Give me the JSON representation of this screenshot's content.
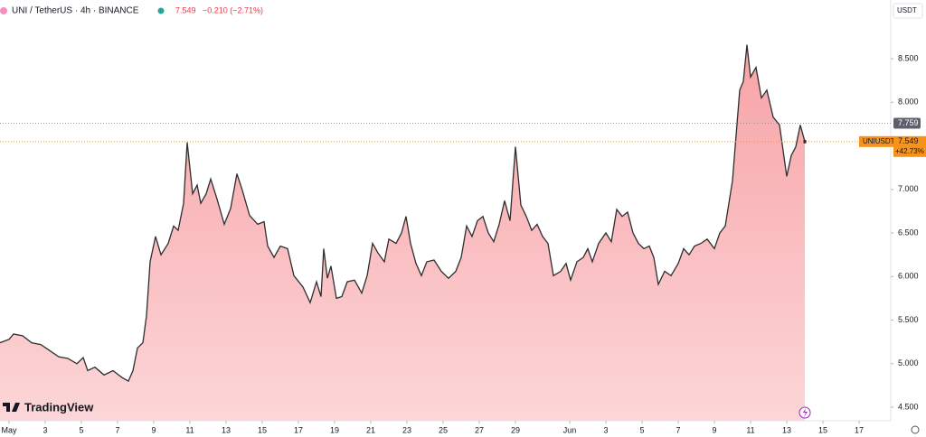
{
  "chart_data": {
    "type": "area",
    "header": {
      "symbol": "UNI / TetherUS · 4h · BINANCE",
      "change": "−0.210 (−2.71%)"
    },
    "currency": "USDT",
    "logo": "TradingView",
    "ticker": "UNIUSDT",
    "last_price": 7.549,
    "last_change_label": "+42.73%",
    "reference_price": 7.759,
    "line_color": "#2e2e2e",
    "fill_top": "#f7a3a7",
    "fill_bottom": "#fcd6d8",
    "last_price_color": "#f7931a",
    "xlim": [
      -0.5,
      48.75
    ],
    "ylim": [
      4.345,
      9.174
    ],
    "xticks": [
      {
        "value": 0,
        "label": "May"
      },
      {
        "value": 2,
        "label": "3"
      },
      {
        "value": 4,
        "label": "5"
      },
      {
        "value": 6,
        "label": "7"
      },
      {
        "value": 8,
        "label": "9"
      },
      {
        "value": 10,
        "label": "11"
      },
      {
        "value": 12,
        "label": "13"
      },
      {
        "value": 14,
        "label": "15"
      },
      {
        "value": 16,
        "label": "17"
      },
      {
        "value": 18,
        "label": "19"
      },
      {
        "value": 20,
        "label": "21"
      },
      {
        "value": 22,
        "label": "23"
      },
      {
        "value": 24,
        "label": "25"
      },
      {
        "value": 26,
        "label": "27"
      },
      {
        "value": 28,
        "label": "29"
      },
      {
        "value": 31,
        "label": "Jun"
      },
      {
        "value": 33,
        "label": "3"
      },
      {
        "value": 35,
        "label": "5"
      },
      {
        "value": 37,
        "label": "7"
      },
      {
        "value": 39,
        "label": "9"
      },
      {
        "value": 41,
        "label": "11"
      },
      {
        "value": 43,
        "label": "13"
      },
      {
        "value": 45,
        "label": "15"
      },
      {
        "value": 47,
        "label": "17"
      }
    ],
    "yticks": [
      {
        "value": 4.5,
        "label": "4.500"
      },
      {
        "value": 5,
        "label": "5.000"
      },
      {
        "value": 5.5,
        "label": "5.500"
      },
      {
        "value": 6,
        "label": "6.000"
      },
      {
        "value": 6.5,
        "label": "6.500"
      },
      {
        "value": 7,
        "label": "7.000"
      },
      {
        "value": 7.5,
        "label": "7.500"
      },
      {
        "value": 8,
        "label": "8.000"
      },
      {
        "value": 8.5,
        "label": "8.500"
      }
    ],
    "x": [
      -0.5,
      0,
      0.25,
      0.75,
      1.25,
      1.75,
      2.25,
      2.75,
      3.25,
      3.75,
      4.1,
      4.35,
      4.75,
      5.25,
      5.75,
      6.25,
      6.6,
      6.85,
      7.1,
      7.4,
      7.6,
      7.8,
      8.1,
      8.4,
      8.8,
      9.1,
      9.35,
      9.65,
      9.85,
      10.15,
      10.4,
      10.6,
      10.9,
      11.15,
      11.5,
      11.9,
      12.25,
      12.6,
      12.9,
      13.3,
      13.75,
      14.1,
      14.3,
      14.65,
      15,
      15.4,
      15.75,
      16.25,
      16.65,
      17,
      17.25,
      17.4,
      17.6,
      17.8,
      18.1,
      18.4,
      18.7,
      19.1,
      19.5,
      19.8,
      20.1,
      20.4,
      20.75,
      21,
      21.4,
      21.7,
      21.95,
      22.2,
      22.5,
      22.8,
      23.1,
      23.5,
      23.9,
      24.3,
      24.7,
      25,
      25.3,
      25.6,
      25.9,
      26.2,
      26.5,
      26.8,
      27.1,
      27.4,
      27.7,
      28,
      28.3,
      28.6,
      28.9,
      29.2,
      29.5,
      29.8,
      30.1,
      30.5,
      30.8,
      31.05,
      31.4,
      31.75,
      32,
      32.25,
      32.6,
      33,
      33.3,
      33.6,
      33.9,
      34.2,
      34.5,
      34.8,
      35.1,
      35.4,
      35.65,
      35.9,
      36.25,
      36.6,
      37,
      37.3,
      37.6,
      37.9,
      38.25,
      38.6,
      39,
      39.3,
      39.6,
      40,
      40.4,
      40.6,
      40.8,
      41,
      41.3,
      41.6,
      41.9,
      42.25,
      42.6,
      43,
      43.25,
      43.5,
      43.75,
      44
    ],
    "values": [
      5.24,
      5.28,
      5.34,
      5.32,
      5.24,
      5.22,
      5.15,
      5.08,
      5.06,
      5.0,
      5.07,
      4.92,
      4.96,
      4.87,
      4.92,
      4.84,
      4.8,
      4.92,
      5.18,
      5.24,
      5.55,
      6.17,
      6.46,
      6.25,
      6.38,
      6.58,
      6.53,
      6.84,
      7.54,
      6.95,
      7.05,
      6.84,
      6.95,
      7.12,
      6.89,
      6.6,
      6.78,
      7.18,
      6.99,
      6.7,
      6.6,
      6.63,
      6.35,
      6.22,
      6.35,
      6.32,
      6.01,
      5.88,
      5.7,
      5.94,
      5.77,
      6.32,
      5.98,
      6.12,
      5.75,
      5.77,
      5.94,
      5.96,
      5.81,
      6.01,
      6.38,
      6.27,
      6.17,
      6.43,
      6.38,
      6.5,
      6.69,
      6.38,
      6.15,
      6.01,
      6.17,
      6.19,
      6.06,
      5.98,
      6.06,
      6.22,
      6.58,
      6.46,
      6.64,
      6.69,
      6.5,
      6.4,
      6.6,
      6.87,
      6.64,
      7.49,
      6.82,
      6.69,
      6.53,
      6.6,
      6.46,
      6.38,
      6.01,
      6.06,
      6.15,
      5.96,
      6.17,
      6.22,
      6.32,
      6.17,
      6.38,
      6.5,
      6.4,
      6.77,
      6.69,
      6.74,
      6.5,
      6.38,
      6.32,
      6.35,
      6.22,
      5.91,
      6.06,
      6.01,
      6.15,
      6.32,
      6.25,
      6.35,
      6.38,
      6.43,
      6.32,
      6.5,
      6.58,
      7.1,
      8.14,
      8.24,
      8.66,
      8.29,
      8.4,
      8.05,
      8.14,
      7.83,
      7.74,
      7.15,
      7.39,
      7.49,
      7.74,
      7.549
    ]
  }
}
